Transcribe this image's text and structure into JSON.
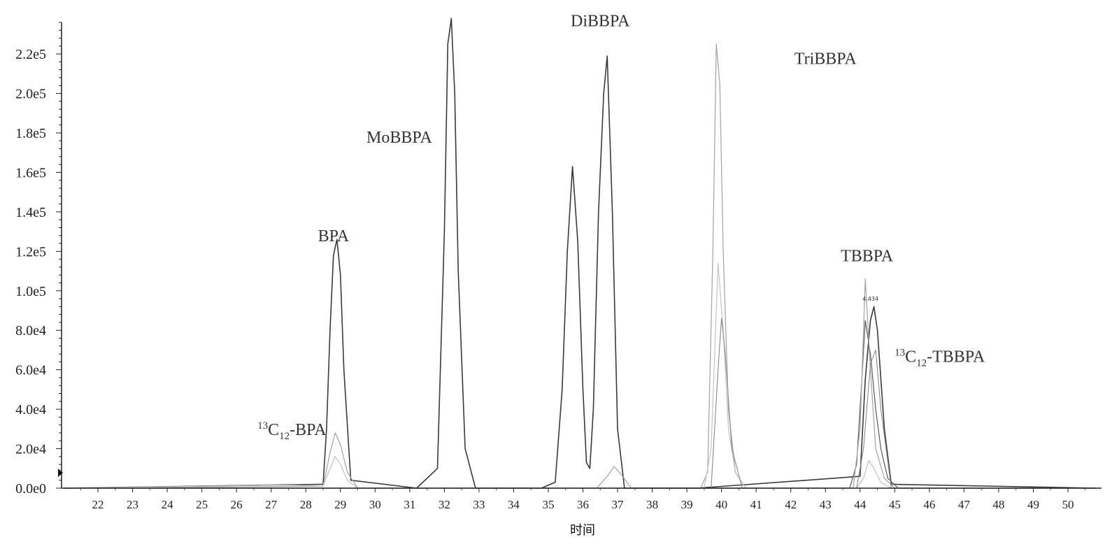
{
  "chart_data": {
    "type": "line",
    "title": "",
    "xlabel": "时间",
    "ylabel": "",
    "xlim": [
      21,
      51.3
    ],
    "ylim": [
      0,
      236000
    ],
    "grid": false,
    "x_ticks": [
      22,
      23,
      24,
      25,
      26,
      27,
      28,
      29,
      30,
      31,
      32,
      33,
      34,
      35,
      36,
      37,
      38,
      39,
      40,
      41,
      42,
      43,
      44,
      45,
      46,
      47,
      48,
      49,
      50
    ],
    "y_ticks": [
      {
        "value": 0,
        "label": "0.0e0"
      },
      {
        "value": 20000,
        "label": "2.0e4"
      },
      {
        "value": 40000,
        "label": "4.0e4"
      },
      {
        "value": 60000,
        "label": "6.0e4"
      },
      {
        "value": 80000,
        "label": "8.0e4"
      },
      {
        "value": 100000,
        "label": "1.0e5"
      },
      {
        "value": 120000,
        "label": "1.2e5"
      },
      {
        "value": 140000,
        "label": "1.4e5"
      },
      {
        "value": 160000,
        "label": "1.6e5"
      },
      {
        "value": 180000,
        "label": "1.8e5"
      },
      {
        "value": 200000,
        "label": "2.0e5"
      },
      {
        "value": 220000,
        "label": "2.2e5"
      }
    ],
    "annotations": [
      {
        "text": "BPA",
        "x": 28.8,
        "y": 125000
      },
      {
        "text": "MoBBPA",
        "x": 30.7,
        "y": 175000
      },
      {
        "text": "DiBBPA",
        "x": 36.5,
        "y": 234000
      },
      {
        "text": "TriBBPA",
        "x": 43.0,
        "y": 215000
      },
      {
        "text": "TBBPA",
        "x": 44.2,
        "y": 115000
      },
      {
        "text": "4.434",
        "x": 44.3,
        "y": 95000
      },
      {
        "base": "C",
        "sup": "13",
        "sub": "12",
        "suffix": "-BPA",
        "x": 27.6,
        "y": 27000
      },
      {
        "base": "C",
        "sup": "13",
        "sub": "12",
        "suffix": "-TBBPA",
        "x": 46.3,
        "y": 64000
      }
    ],
    "series": [
      {
        "color": "#3a3a3a",
        "width": 1.6,
        "x": [
          21,
          28.5,
          28.6,
          28.7,
          28.8,
          28.9,
          29.0,
          29.1,
          29.3,
          31.2,
          31.8,
          32.0,
          32.1,
          32.2,
          32.3,
          32.4,
          32.6,
          32.9,
          34.8,
          35.2,
          35.4,
          35.55,
          35.7,
          35.85,
          36.0,
          36.1,
          36.2,
          36.3,
          36.45,
          36.6,
          36.7,
          36.85,
          37.0,
          37.2,
          39.3,
          44.0,
          44.15,
          44.3,
          44.4,
          44.5,
          44.7,
          44.9,
          50.8
        ],
        "y": [
          0,
          2000,
          30000,
          80000,
          118000,
          126000,
          108000,
          60000,
          4000,
          0,
          10000,
          130000,
          225000,
          238000,
          200000,
          110000,
          20000,
          0,
          0,
          3000,
          50000,
          120000,
          163000,
          125000,
          50000,
          13000,
          10000,
          40000,
          140000,
          200000,
          219000,
          140000,
          30000,
          0,
          0,
          6000,
          55000,
          85000,
          92000,
          80000,
          30000,
          2000,
          0
        ]
      },
      {
        "color": "#5a5a5a",
        "width": 1.2,
        "x": [
          21,
          43.7,
          43.9,
          44.05,
          44.15,
          44.3,
          44.45,
          44.6,
          44.8,
          45.1,
          50.8
        ],
        "y": [
          0,
          0,
          12000,
          55000,
          85000,
          68000,
          40000,
          20000,
          5000,
          0,
          0
        ]
      },
      {
        "color": "#a8a8a8",
        "width": 1.3,
        "x": [
          21,
          28.5,
          28.7,
          28.85,
          29.0,
          29.2,
          29.5,
          36.4,
          36.7,
          36.9,
          37.1,
          37.4,
          39.4,
          39.6,
          39.75,
          39.85,
          39.95,
          40.05,
          40.2,
          40.4,
          40.7,
          43.8,
          44.0,
          44.15,
          44.3,
          44.45,
          44.7,
          45.0,
          50.8
        ],
        "y": [
          0,
          1000,
          18000,
          28000,
          22000,
          8000,
          0,
          0,
          6000,
          11000,
          7000,
          0,
          0,
          8000,
          120000,
          225000,
          205000,
          120000,
          40000,
          8000,
          0,
          0,
          30000,
          106000,
          60000,
          20000,
          5000,
          0,
          0
        ]
      },
      {
        "color": "#c2c2c2",
        "width": 1.2,
        "x": [
          21,
          27.0,
          27.7,
          28.5,
          28.7,
          28.85,
          29.0,
          29.2,
          29.5,
          39.5,
          39.7,
          39.9,
          40.05,
          40.2,
          40.4,
          40.7,
          43.9,
          44.1,
          44.25,
          44.4,
          44.6,
          44.9,
          50.8
        ],
        "y": [
          0,
          1500,
          1500,
          1000,
          10000,
          16000,
          12000,
          4000,
          0,
          0,
          20000,
          114000,
          80000,
          30000,
          8000,
          0,
          0,
          5000,
          14000,
          10000,
          3000,
          0,
          0
        ]
      },
      {
        "color": "#8a8a8a",
        "width": 1.1,
        "x": [
          21,
          39.7,
          39.9,
          40.0,
          40.1,
          40.3,
          40.6,
          43.9,
          44.1,
          44.3,
          44.45,
          44.6,
          44.9,
          50.8
        ],
        "y": [
          0,
          0,
          60000,
          86000,
          70000,
          20000,
          0,
          0,
          20000,
          63000,
          70000,
          40000,
          0,
          0
        ]
      }
    ]
  }
}
